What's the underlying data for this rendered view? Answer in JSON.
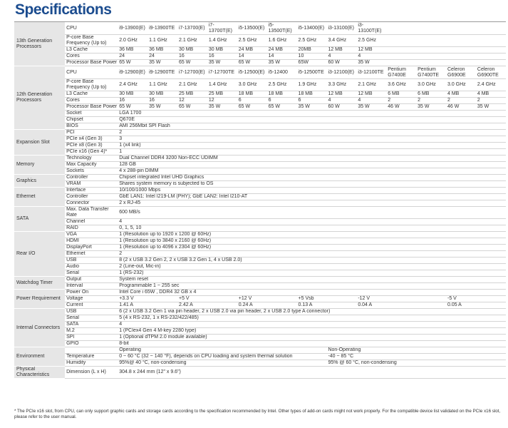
{
  "title": "Specifications",
  "sections": [
    {
      "name": "13th Generation Processors",
      "rows": [
        {
          "label": "CPU",
          "h": 18,
          "cells": [
            "i9-13900(E)",
            "i9-13900TE",
            "i7-13700(E)",
            "i7-13700T(E)",
            "i5-13500(E)",
            "i5-13500T(E)",
            "i5-13400(E)",
            "i3-13100(E)",
            "i3-13100T(E)"
          ]
        },
        {
          "label": "P-core Base Frequency (Up to)",
          "h": 14,
          "cells": [
            "2.0 GHz",
            "1.1 GHz",
            "2.1 GHz",
            "1.4 GHz",
            "2.5 GHz",
            "1.6 GHz",
            "2.5 GHz",
            "3.4 GHz",
            "2.5 GHz"
          ]
        },
        {
          "label": "L3 Cache",
          "cells": [
            "36 MB",
            "36 MB",
            "30 MB",
            "30 MB",
            "24 MB",
            "24 MB",
            "20MB",
            "12 MB",
            "12 MB"
          ]
        },
        {
          "label": "Cores",
          "cells": [
            "24",
            "24",
            "16",
            "16",
            "14",
            "14",
            "10",
            "4",
            "4"
          ]
        },
        {
          "label": "Processor Base Power",
          "cells": [
            "65 W",
            "35 W",
            "65 W",
            "35 W",
            "65 W",
            "35 W",
            "65W",
            "60 W",
            "35 W"
          ]
        }
      ]
    },
    {
      "name": "12th Generation Processors",
      "rows": [
        {
          "label": "CPU",
          "h": 18,
          "cells": [
            "i9-12900(E)",
            "i9-12900TE",
            "i7-12700(E)",
            "i7-12700TE",
            "i5-12500(E)",
            "i5-12400",
            "i5-12500TE",
            "i3-12100(E)",
            "i3-12100TE",
            "Pentium G7400E",
            "Pentium G7400TE",
            "Celeron G6900E",
            "Celeron G6900TE"
          ]
        },
        {
          "label": "P-core Base Frequency (Up to)",
          "h": 14,
          "cells": [
            "2.4 GHz",
            "1.1 GHz",
            "2.1 GHz",
            "1.4 GHz",
            "3.0 GHz",
            "2.5 GHz",
            "1.9 GHz",
            "3.3 GHz",
            "2.1 GHz",
            "3.6 GHz",
            "3.0 GHz",
            "3.0 GHz",
            "2.4 GHz"
          ]
        },
        {
          "label": "L3 Cache",
          "cells": [
            "30 MB",
            "30 MB",
            "25 MB",
            "25 MB",
            "18 MB",
            "18 MB",
            "18 MB",
            "12 MB",
            "12 MB",
            "6 MB",
            "6 MB",
            "4 MB",
            "4 MB"
          ]
        },
        {
          "label": "Cores",
          "cells": [
            "16",
            "16",
            "12",
            "12",
            "6",
            "6",
            "6",
            "4",
            "4",
            "2",
            "2",
            "2",
            "2"
          ]
        },
        {
          "label": "Processor Base Power",
          "cells": [
            "65 W",
            "35 W",
            "65 W",
            "35 W",
            "65 W",
            "65 W",
            "35 W",
            "60 W",
            "35 W",
            "46 W",
            "35 W",
            "46 W",
            "35 W"
          ]
        },
        {
          "label": "Socket",
          "value": "LGA 1700"
        },
        {
          "label": "Chipset",
          "value": "Q670E"
        },
        {
          "label": "BIOS",
          "value": "AMI 256Mbit SPI Flash"
        }
      ]
    },
    {
      "name": "Expansion Slot",
      "rows": [
        {
          "label": "PCI",
          "value": "2"
        },
        {
          "label": "PCIe x4 (Gen 3)",
          "value": "3"
        },
        {
          "label": "PCIe x8 (Gen 3)",
          "value": "1 (x4 link)"
        },
        {
          "label": "PCIe x16 (Gen 4)*",
          "value": "1"
        }
      ]
    },
    {
      "name": "Memory",
      "rows": [
        {
          "label": "Technology",
          "value": "Dual Channel DDR4 3200 Non-ECC UDIMM"
        },
        {
          "label": "Max Capacity",
          "value": "128 GB"
        },
        {
          "label": "Sockets",
          "value": "4 x 288-pin DIMM"
        }
      ]
    },
    {
      "name": "Graphics",
      "rows": [
        {
          "label": "Controller",
          "value": "Chipset integrated Intel UHD Graphics"
        },
        {
          "label": "VRAM",
          "value": "Shares system memory is subjected to OS"
        }
      ]
    },
    {
      "name": "Ethernet",
      "rows": [
        {
          "label": "Interface",
          "value": "10/100/1000 Mbps"
        },
        {
          "label": "Controller",
          "value": "GbE LAN1: Intel I219-LM (PHY); GbE LAN2: Intel I210-AT"
        },
        {
          "label": "Connector",
          "value": "2 x RJ-45"
        }
      ]
    },
    {
      "name": "SATA",
      "rows": [
        {
          "label": "Max. Data Transfer Rate",
          "h": 17,
          "value": "600 MB/s"
        },
        {
          "label": "Channel",
          "value": "4"
        },
        {
          "label": "RAID",
          "value": "0, 1, 5, 10"
        }
      ]
    },
    {
      "name": "Rear I/O",
      "rows": [
        {
          "label": "VGA",
          "value": "1 (Resolution up to 1920 x 1200 @ 60Hz)"
        },
        {
          "label": "HDMI",
          "value": "1 (Resolution up to 3840 x 2160 @ 60Hz)"
        },
        {
          "label": "DisplayPort",
          "value": "1 (Resolution up to 4096 x 2304 @ 60Hz)"
        },
        {
          "label": "Ethernet",
          "value": "2"
        },
        {
          "label": "USB",
          "value": "8 (2 x USB 3.2 Gen 2, 2 x USB 3.2 Gen 1, 4 x USB 2.0)"
        },
        {
          "label": "Audio",
          "value": "2 (Line-out, Mic-in)"
        },
        {
          "label": "Serial",
          "value": "1 (RS-232)"
        }
      ]
    },
    {
      "name": "Watchdog Timer",
      "rows": [
        {
          "label": "Output",
          "value": "System reset"
        },
        {
          "label": "Interval",
          "value": "Programmable 1 ~ 255 sec"
        }
      ]
    },
    {
      "name": "Power Requirement",
      "rows": [
        {
          "label": "Power On",
          "value": "Intel Core i 65W , DDR4 32 GB x 4"
        },
        {
          "label": "Voltage",
          "power": [
            "+3.3 V",
            "+5 V",
            "+12 V",
            "+5 Vsb",
            "-12 V",
            "-5 V"
          ]
        },
        {
          "label": "Current",
          "power": [
            "1.41 A",
            "2.42 A",
            "0.24 A",
            "0.13 A",
            "0.04 A",
            "0.05 A"
          ]
        }
      ]
    },
    {
      "name": "Internal Connectors",
      "rows": [
        {
          "label": "USB",
          "value": "6 (2 x USB 3.2 Gen 1 via pin header, 2 x USB 2.0 via pin header, 2 x USB 2.0 type A connector)"
        },
        {
          "label": "Serial",
          "value": "5 (4 x RS-232, 1 x RS-232/422/485)"
        },
        {
          "label": "SATA",
          "value": "4"
        },
        {
          "label": "M.2",
          "value": "1 (PCIex4 Gen 4 M-key 2280 type)"
        },
        {
          "label": "SPI",
          "value": "1 (Optional dTPM 2.0 module available)"
        },
        {
          "label": "GPIO",
          "value": "8-bit"
        }
      ]
    },
    {
      "name": "Environment",
      "rows": [
        {
          "label": "",
          "env": [
            "Operating",
            "Non-Operating"
          ]
        },
        {
          "label": "Temperature",
          "env": [
            "0 ~ 60 °C (32 ~ 140 °F), depends on CPU loading and system thermal solution",
            "-40 ~ 85 °C"
          ]
        },
        {
          "label": "Humidity",
          "env": [
            "95%@ 40 °C, non-condensing",
            "95% @ 60 °C, non-condensing"
          ]
        }
      ]
    },
    {
      "name": "Physical Characteristics",
      "rows": [
        {
          "label": "Dimension (L x H)",
          "h": 17,
          "value": "304.8 x 244 mm (12\" x 9.6\")"
        }
      ]
    }
  ],
  "footnote": "* The PCIe x16 slot, from CPU, can only support graphic cards and storage cards according to the specification recommended by Intel. Other types of add-on cards might not work properly. For the compatible device list validated on the PCIe x16 slot, please refer to the user manual."
}
